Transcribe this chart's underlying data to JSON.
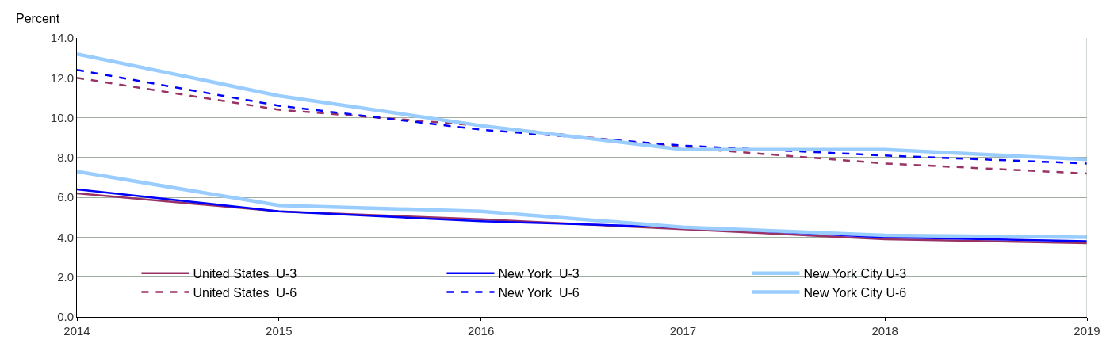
{
  "chart_data": {
    "type": "line",
    "ylabel": "Percent",
    "x": [
      2014,
      2015,
      2016,
      2017,
      2018,
      2019
    ],
    "series": [
      {
        "name": "United States  U-3",
        "color": "#993366",
        "line_style": "solid",
        "values": [
          6.2,
          5.3,
          4.9,
          4.4,
          3.9,
          3.7
        ]
      },
      {
        "name": "New York  U-3",
        "color": "#0000ff",
        "line_style": "solid",
        "values": [
          6.4,
          5.3,
          4.8,
          4.5,
          4.0,
          3.8
        ]
      },
      {
        "name": "New York City U-3",
        "color": "#99ccff",
        "line_style": "solid",
        "values": [
          7.3,
          5.6,
          5.3,
          4.5,
          4.1,
          4.0
        ]
      },
      {
        "name": "United States  U-6",
        "color": "#993366",
        "line_style": "dashed",
        "values": [
          12.0,
          10.4,
          9.6,
          8.5,
          7.7,
          7.2
        ]
      },
      {
        "name": "New York  U-6",
        "color": "#0000ff",
        "line_style": "dashed",
        "values": [
          12.4,
          10.6,
          9.4,
          8.6,
          8.1,
          7.7
        ]
      },
      {
        "name": "New York City U-6",
        "color": "#99ccff",
        "line_style": "solid",
        "values": [
          13.2,
          11.1,
          9.6,
          8.4,
          8.4,
          7.9
        ]
      }
    ],
    "xlim": [
      2014,
      2019
    ],
    "xticks": [
      2014,
      2015,
      2016,
      2017,
      2018,
      2019
    ],
    "ylim": [
      0,
      14
    ],
    "yticks": [
      {
        "value": 0,
        "label": "0.0"
      },
      {
        "value": 2,
        "label": "2.0"
      },
      {
        "value": 4,
        "label": "4.0"
      },
      {
        "value": 6,
        "label": "6.0"
      },
      {
        "value": 8,
        "label": "8.0"
      },
      {
        "value": 10,
        "label": "10.0"
      },
      {
        "value": 12,
        "label": "12.0"
      },
      {
        "value": 14,
        "label": "14.0"
      }
    ],
    "grid": "y",
    "legend": "bottom",
    "marker": "none"
  }
}
